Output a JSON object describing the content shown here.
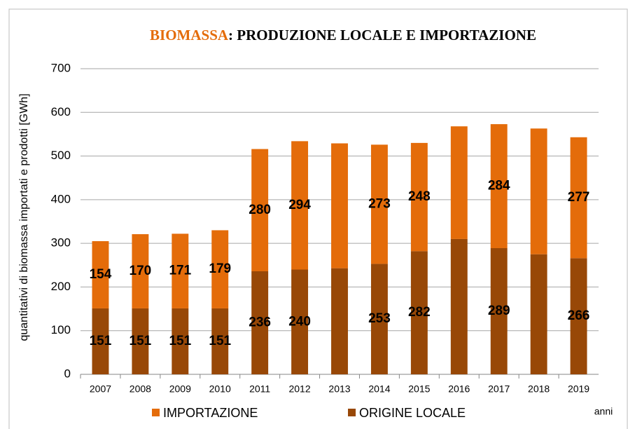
{
  "chart_data": {
    "type": "stacked_bar",
    "title_parts": [
      "BIOMASSA",
      ": PRODUZIONE LOCALE E IMPORTAZIONE"
    ],
    "title_colors": [
      "#e46c0a",
      "#000000"
    ],
    "y_label": "quantitativi di biomassa importati e prodotti [GWh]",
    "x_label": "anni",
    "categories": [
      "2007",
      "2008",
      "2009",
      "2010",
      "2011",
      "2012",
      "2013",
      "2014",
      "2015",
      "2016",
      "2017",
      "2018",
      "2019"
    ],
    "series": [
      {
        "name": "ORIGINE LOCALE",
        "color": "#984807",
        "values": [
          151,
          151,
          151,
          151,
          236,
          240,
          243,
          253,
          282,
          310,
          289,
          275,
          266
        ],
        "value_labels": [
          "151",
          "151",
          "151",
          "151",
          "236",
          "240",
          null,
          "253",
          "282",
          null,
          "289",
          null,
          "266"
        ]
      },
      {
        "name": "IMPORTAZIONE",
        "color": "#e46c0a",
        "values": [
          154,
          170,
          171,
          179,
          280,
          294,
          286,
          273,
          248,
          258,
          284,
          288,
          277
        ],
        "value_labels": [
          "154",
          "170",
          "171",
          "179",
          "280",
          "294",
          null,
          "273",
          "248",
          null,
          "284",
          null,
          "277"
        ]
      }
    ],
    "legend_order": [
      1,
      0
    ],
    "ylim": [
      0,
      700
    ],
    "yticks": [
      0,
      100,
      200,
      300,
      400,
      500,
      600,
      700
    ],
    "grid": true
  }
}
